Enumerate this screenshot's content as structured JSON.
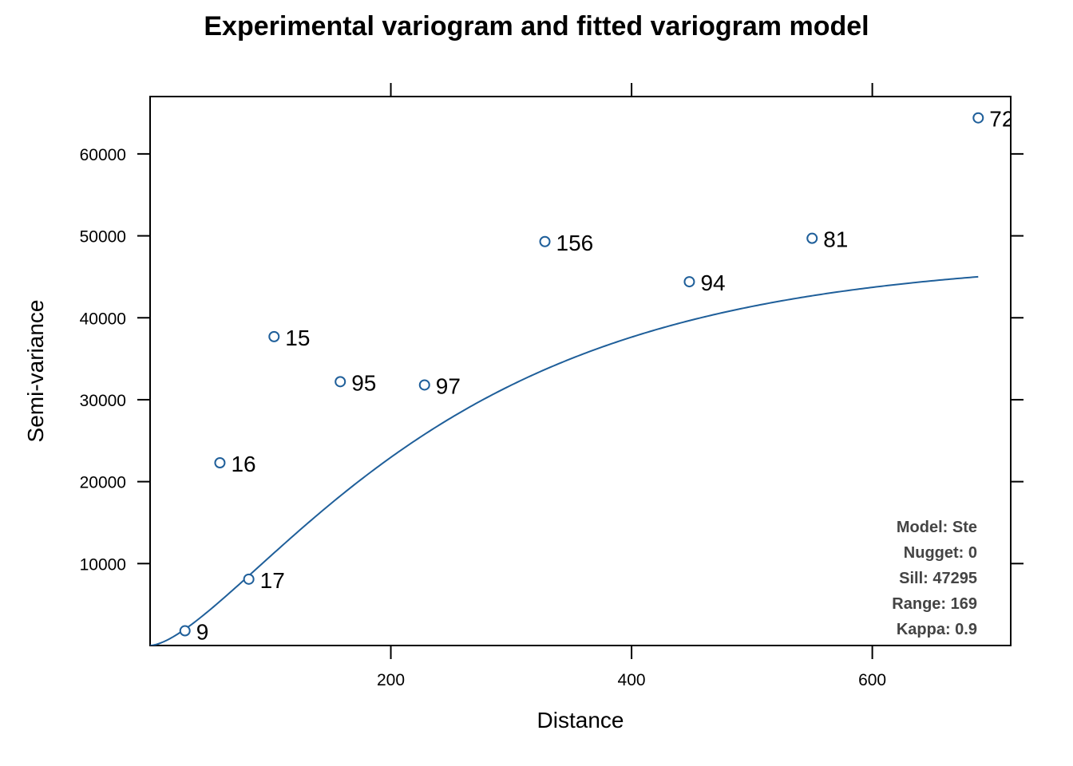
{
  "chart_data": {
    "type": "scatter",
    "title": "Experimental variogram and fitted variogram model",
    "xlabel": "Distance",
    "ylabel": "Semi-variance",
    "xlim": [
      0,
      715
    ],
    "ylim": [
      0,
      67000
    ],
    "xticks": [
      200,
      400,
      600
    ],
    "yticks": [
      10000,
      20000,
      30000,
      40000,
      50000,
      60000
    ],
    "points": [
      {
        "x": 29,
        "y": 1800,
        "label": "9"
      },
      {
        "x": 58,
        "y": 22300,
        "label": "16"
      },
      {
        "x": 82,
        "y": 8100,
        "label": "17"
      },
      {
        "x": 103,
        "y": 37700,
        "label": "15"
      },
      {
        "x": 158,
        "y": 32200,
        "label": "95"
      },
      {
        "x": 228,
        "y": 31800,
        "label": "97"
      },
      {
        "x": 328,
        "y": 49300,
        "label": "156"
      },
      {
        "x": 448,
        "y": 44400,
        "label": "94"
      },
      {
        "x": 550,
        "y": 49700,
        "label": "81"
      },
      {
        "x": 688,
        "y": 64400,
        "label": "72"
      }
    ],
    "model": {
      "type": "Ste",
      "nugget": 0,
      "sill": 47295,
      "range": 169,
      "kappa": 0.9,
      "xmax": 688
    },
    "model_text": [
      "Model: Ste",
      "Nugget: 0",
      "Sill: 47295",
      "Range: 169",
      "Kappa: 0.9"
    ],
    "colors": {
      "series": "#1f5f9a",
      "frame": "#000000",
      "model_text": "#444444"
    },
    "grid": false,
    "legend": "bottom-right"
  }
}
